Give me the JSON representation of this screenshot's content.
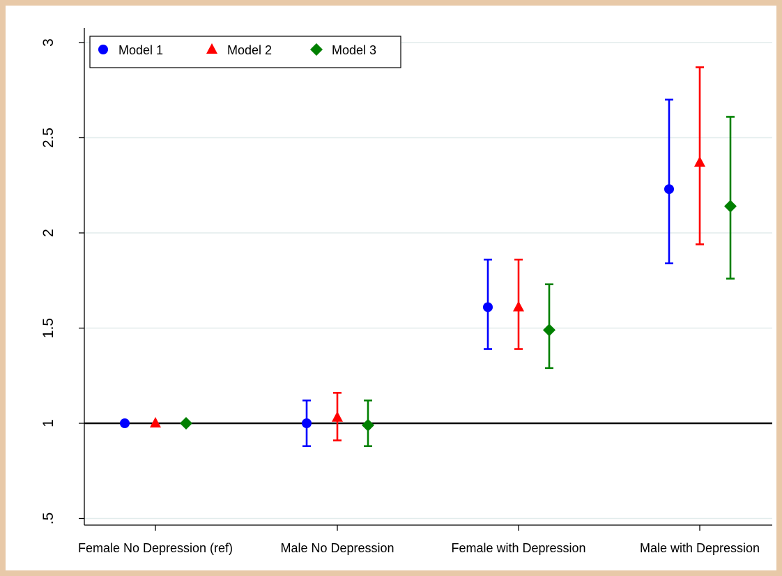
{
  "chart_data": {
    "type": "scatter",
    "title": "",
    "xlabel": "",
    "ylabel": "",
    "categories": [
      "Female No Depression (ref)",
      "Male No Depression",
      "Female with Depression",
      "Male with Depression"
    ],
    "y_ticks": [
      ".5",
      "1",
      "1.5",
      "2",
      "2.5",
      "3"
    ],
    "ylim": [
      0.45,
      3.05
    ],
    "reference_line": 1,
    "grid": "horizontal",
    "legend_position": "top-left",
    "series": [
      {
        "name": "Model 1",
        "color": "#0000ff",
        "marker": "circle",
        "values": [
          1.0,
          1.0,
          1.61,
          2.23
        ],
        "ci_low": [
          null,
          0.88,
          1.39,
          1.84
        ],
        "ci_high": [
          null,
          1.12,
          1.86,
          2.7
        ]
      },
      {
        "name": "Model 2",
        "color": "#ff0000",
        "marker": "triangle",
        "values": [
          1.0,
          1.03,
          1.61,
          2.37
        ],
        "ci_low": [
          null,
          0.91,
          1.39,
          1.94
        ],
        "ci_high": [
          null,
          1.16,
          1.86,
          2.87
        ]
      },
      {
        "name": "Model 3",
        "color": "#008000",
        "marker": "diamond",
        "values": [
          1.0,
          0.99,
          1.49,
          2.14
        ],
        "ci_low": [
          null,
          0.88,
          1.29,
          1.76
        ],
        "ci_high": [
          null,
          1.12,
          1.73,
          2.61
        ]
      }
    ]
  }
}
